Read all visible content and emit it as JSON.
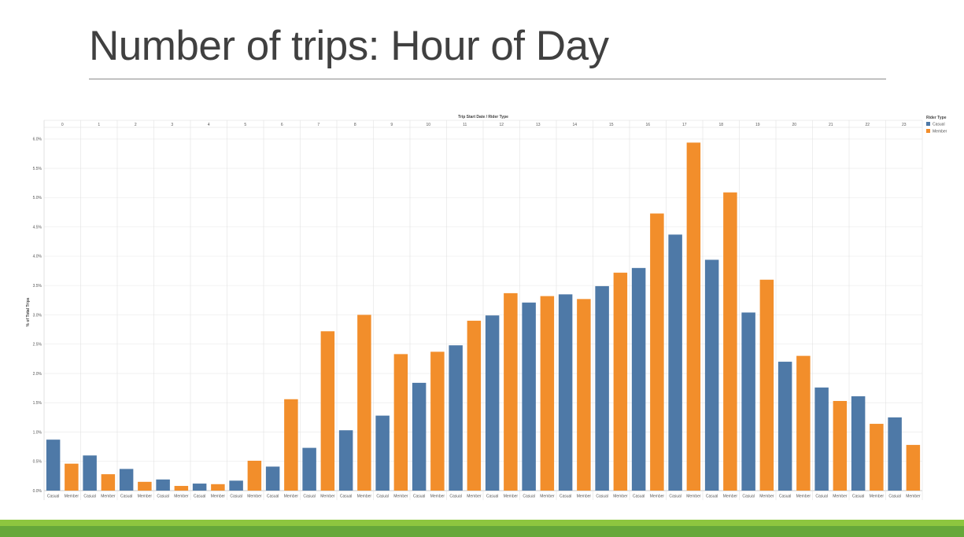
{
  "slide": {
    "title": "Number of trips: Hour of Day"
  },
  "colors": {
    "casual": "#4e79a7",
    "member": "#f28e2b",
    "title_text": "#404040",
    "band_light": "#8dc63f",
    "band_dark": "#66a83a"
  },
  "chart_data": {
    "type": "bar",
    "title": "Trip Start Date / Rider Type",
    "xlabel": "",
    "ylabel": "% of Total Trips",
    "legend_title": "Rider Type",
    "legend_position": "top-right",
    "grid": true,
    "ylim": [
      0,
      6.2
    ],
    "y_ticks": [
      "0.0%",
      "0.5%",
      "1.0%",
      "1.5%",
      "2.0%",
      "2.5%",
      "3.0%",
      "3.5%",
      "4.0%",
      "4.5%",
      "5.0%",
      "5.5%",
      "6.0%"
    ],
    "hours": [
      "0",
      "1",
      "2",
      "3",
      "4",
      "5",
      "6",
      "7",
      "8",
      "9",
      "10",
      "11",
      "12",
      "13",
      "14",
      "15",
      "16",
      "17",
      "18",
      "19",
      "20",
      "21",
      "22",
      "23"
    ],
    "series": [
      {
        "name": "Casual",
        "values": [
          0.87,
          0.6,
          0.37,
          0.19,
          0.12,
          0.17,
          0.41,
          0.73,
          1.03,
          1.28,
          1.84,
          2.48,
          2.99,
          3.21,
          3.35,
          3.49,
          3.8,
          4.37,
          3.94,
          3.04,
          2.2,
          1.76,
          1.61,
          1.25
        ]
      },
      {
        "name": "Member",
        "values": [
          0.46,
          0.28,
          0.15,
          0.08,
          0.11,
          0.51,
          1.56,
          2.72,
          3.0,
          2.33,
          2.37,
          2.9,
          3.37,
          3.32,
          3.27,
          3.72,
          4.73,
          5.94,
          5.09,
          3.6,
          2.3,
          1.53,
          1.14,
          0.78
        ]
      }
    ]
  }
}
